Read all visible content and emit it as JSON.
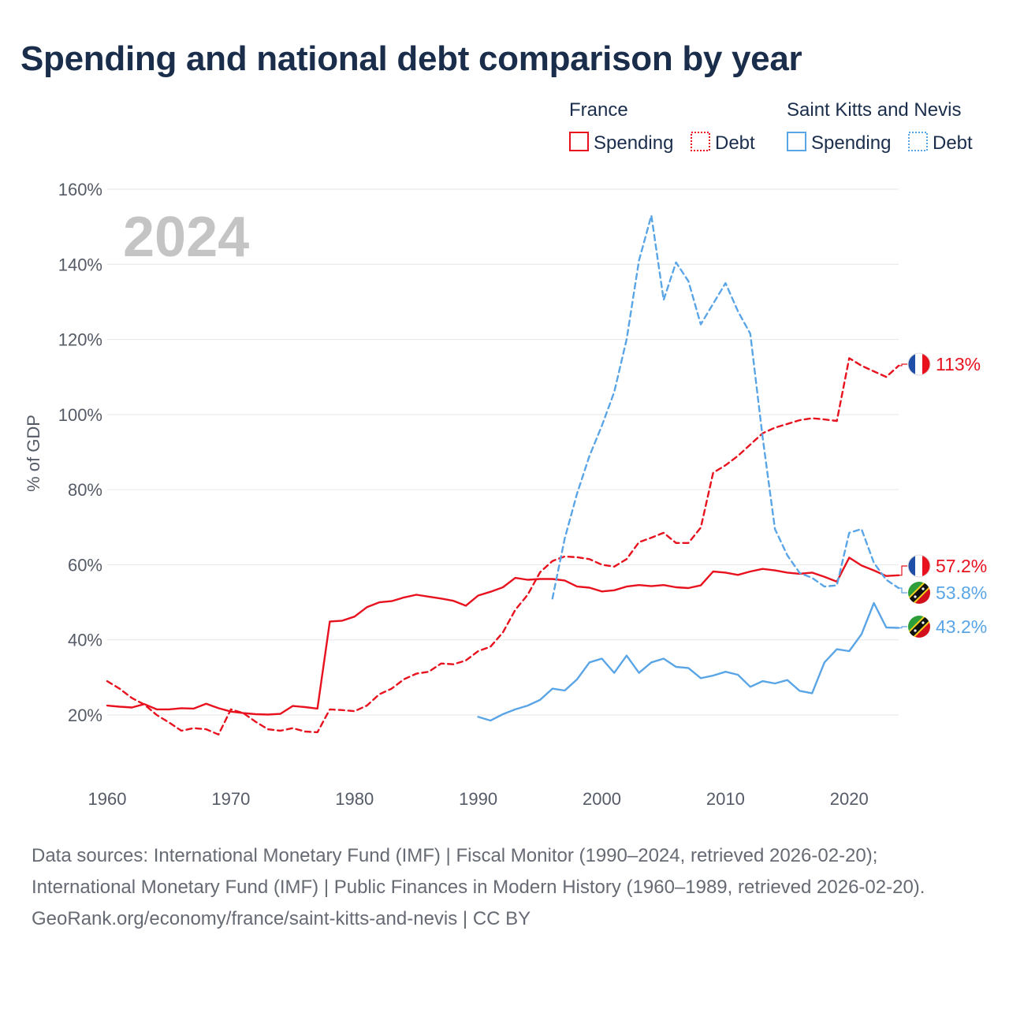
{
  "title": "Spending and national debt comparison by year",
  "chart_data": {
    "type": "line",
    "title": "Spending and national debt comparison by year",
    "ylabel": "% of GDP",
    "xlabel": "",
    "xlim": [
      1960,
      2024
    ],
    "ylim": [
      8,
      165
    ],
    "x_ticks": [
      1960,
      1970,
      1980,
      1990,
      2000,
      2010,
      2020
    ],
    "y_ticks": [
      20,
      40,
      60,
      80,
      100,
      120,
      140,
      160
    ],
    "y_tick_labels": [
      "20%",
      "40%",
      "60%",
      "80%",
      "100%",
      "120%",
      "140%",
      "160%"
    ],
    "x_tick_labels": [
      "1960",
      "1970",
      "1980",
      "1990",
      "2000",
      "2010",
      "2020"
    ],
    "year_label": "2024",
    "legend": {
      "groups": [
        {
          "name": "France",
          "items": [
            "Spending",
            "Debt"
          ]
        },
        {
          "name": "Saint Kitts and Nevis",
          "items": [
            "Spending",
            "Debt"
          ]
        }
      ]
    },
    "colors": {
      "france": "#e8111e",
      "skn": "#5aa5e6",
      "grid": "#e6e6e6",
      "title": "#1a2e4c"
    },
    "series": [
      {
        "name": "France Spending",
        "country": "France",
        "measure": "Spending",
        "style": "solid",
        "color": "#e8111e",
        "end_label": "57.2%",
        "x": [
          1960,
          1961,
          1962,
          1963,
          1964,
          1965,
          1966,
          1967,
          1968,
          1969,
          1970,
          1971,
          1972,
          1973,
          1974,
          1975,
          1976,
          1977,
          1978,
          1979,
          1980,
          1981,
          1982,
          1983,
          1984,
          1985,
          1986,
          1987,
          1988,
          1989,
          1990,
          1991,
          1992,
          1993,
          1994,
          1995,
          1996,
          1997,
          1998,
          1999,
          2000,
          2001,
          2002,
          2003,
          2004,
          2005,
          2006,
          2007,
          2008,
          2009,
          2010,
          2011,
          2012,
          2013,
          2014,
          2015,
          2016,
          2017,
          2018,
          2019,
          2020,
          2021,
          2022,
          2023,
          2024
        ],
        "values": [
          22.5,
          22.2,
          22.0,
          22.9,
          21.5,
          21.5,
          21.8,
          21.7,
          23.0,
          21.8,
          20.9,
          20.5,
          20.2,
          20.1,
          20.3,
          22.4,
          22.1,
          21.7,
          44.9,
          45.1,
          46.2,
          48.7,
          50.0,
          50.3,
          51.3,
          52.0,
          51.5,
          51.0,
          50.4,
          49.1,
          51.8,
          52.8,
          54.0,
          56.5,
          56.0,
          56.2,
          56.2,
          55.8,
          54.2,
          53.9,
          52.9,
          53.2,
          54.2,
          54.6,
          54.3,
          54.6,
          54.0,
          53.8,
          54.5,
          58.2,
          57.9,
          57.3,
          58.2,
          58.9,
          58.5,
          57.9,
          57.6,
          57.9,
          56.8,
          55.5,
          61.9,
          59.8,
          58.5,
          57.0,
          57.2
        ]
      },
      {
        "name": "France Debt",
        "country": "France",
        "measure": "Debt",
        "style": "dashed",
        "color": "#e8111e",
        "end_label": "113%",
        "x": [
          1960,
          1961,
          1962,
          1963,
          1964,
          1965,
          1966,
          1967,
          1968,
          1969,
          1970,
          1971,
          1972,
          1973,
          1974,
          1975,
          1976,
          1977,
          1978,
          1979,
          1980,
          1981,
          1982,
          1983,
          1984,
          1985,
          1986,
          1987,
          1988,
          1989,
          1990,
          1991,
          1992,
          1993,
          1994,
          1995,
          1996,
          1997,
          1998,
          1999,
          2000,
          2001,
          2002,
          2003,
          2004,
          2005,
          2006,
          2007,
          2008,
          2009,
          2010,
          2011,
          2012,
          2013,
          2014,
          2015,
          2016,
          2017,
          2018,
          2019,
          2020,
          2021,
          2022,
          2023,
          2024
        ],
        "values": [
          29.0,
          27.0,
          24.5,
          22.8,
          20.0,
          18.0,
          15.8,
          16.5,
          16.2,
          14.8,
          21.5,
          20.5,
          18.2,
          16.2,
          15.8,
          16.5,
          15.6,
          15.4,
          21.5,
          21.3,
          21.0,
          22.5,
          25.5,
          27.0,
          29.5,
          31.0,
          31.5,
          33.7,
          33.5,
          34.5,
          37.0,
          38.2,
          42.0,
          48.0,
          52.0,
          58.0,
          61.0,
          62.2,
          62.0,
          61.5,
          60.0,
          59.5,
          61.5,
          66.0,
          67.2,
          68.5,
          65.8,
          65.8,
          69.9,
          84.5,
          86.5,
          89.0,
          92.0,
          95.0,
          96.5,
          97.5,
          98.5,
          99.0,
          98.7,
          98.3,
          115.0,
          113.0,
          111.5,
          110.0,
          113.0
        ]
      },
      {
        "name": "Saint Kitts and Nevis Spending",
        "country": "Saint Kitts and Nevis",
        "measure": "Spending",
        "style": "solid",
        "color": "#5aa5e6",
        "end_label": "43.2%",
        "x": [
          1990,
          1991,
          1992,
          1993,
          1994,
          1995,
          1996,
          1997,
          1998,
          1999,
          2000,
          2001,
          2002,
          2003,
          2004,
          2005,
          2006,
          2007,
          2008,
          2009,
          2010,
          2011,
          2012,
          2013,
          2014,
          2015,
          2016,
          2017,
          2018,
          2019,
          2020,
          2021,
          2022,
          2023,
          2024
        ],
        "values": [
          19.5,
          18.5,
          20.2,
          21.5,
          22.5,
          24.0,
          27.0,
          26.5,
          29.5,
          34.0,
          35.0,
          31.2,
          35.8,
          31.2,
          34.0,
          35.0,
          32.8,
          32.5,
          29.8,
          30.5,
          31.5,
          30.7,
          27.5,
          29.0,
          28.4,
          29.3,
          26.4,
          25.8,
          34.0,
          37.5,
          37.0,
          41.5,
          49.8,
          43.3,
          43.2
        ]
      },
      {
        "name": "Saint Kitts and Nevis Debt",
        "country": "Saint Kitts and Nevis",
        "measure": "Debt",
        "style": "dashed",
        "color": "#5aa5e6",
        "end_label": "53.8%",
        "x": [
          1996,
          1997,
          1998,
          1999,
          2000,
          2001,
          2002,
          2003,
          2004,
          2005,
          2006,
          2007,
          2008,
          2009,
          2010,
          2011,
          2012,
          2013,
          2014,
          2015,
          2016,
          2017,
          2018,
          2019,
          2020,
          2021,
          2022,
          2023,
          2024
        ],
        "values": [
          51.0,
          67.0,
          79.0,
          89.0,
          97.0,
          106.0,
          120.0,
          141.0,
          153.0,
          130.5,
          140.5,
          135.5,
          124.0,
          129.5,
          135.0,
          127.5,
          121.5,
          94.0,
          69.5,
          62.5,
          57.8,
          56.5,
          54.2,
          54.5,
          68.5,
          69.5,
          60.5,
          56.0,
          53.8
        ]
      }
    ]
  },
  "footer": {
    "sources": "Data sources: International Monetary Fund (IMF) | Fiscal Monitor (1990–2024, retrieved 2026-02-20); International Monetary Fund (IMF) | Public Finances in Modern History (1960–1989, retrieved 2026-02-20).",
    "credit": "GeoRank.org/economy/france/saint-kitts-and-nevis | CC BY"
  }
}
